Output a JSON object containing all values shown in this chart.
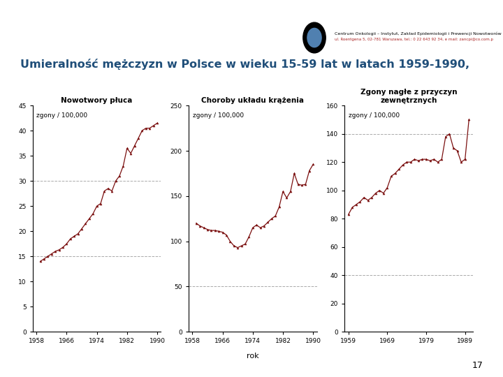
{
  "title": "Umieralność mężczyzn w Polsce w wieku 15-59 lat w latach 1959-1990,",
  "title_color": "#1F4E79",
  "bg_color": "#FFFFFF",
  "header_blue": "#5080B0",
  "header_red": "#8B1A1A",
  "line_color": "#7B1010",
  "grid_color": "#AAAAAA",
  "page_number": "17",
  "plot1": {
    "title": "Nowotwory płuca",
    "ylabel": "zgony / 100,000",
    "ylim": [
      0,
      45
    ],
    "yticks": [
      0,
      5,
      10,
      15,
      20,
      25,
      30,
      35,
      40,
      45
    ],
    "xticks": [
      1958,
      1966,
      1974,
      1982,
      1990
    ],
    "xlim": [
      1957,
      1991
    ],
    "hgrid": [
      15,
      30
    ],
    "years": [
      1959,
      1960,
      1961,
      1962,
      1963,
      1964,
      1965,
      1966,
      1967,
      1968,
      1969,
      1970,
      1971,
      1972,
      1973,
      1974,
      1975,
      1976,
      1977,
      1978,
      1979,
      1980,
      1981,
      1982,
      1983,
      1984,
      1985,
      1986,
      1987,
      1988,
      1989,
      1990
    ],
    "values": [
      14.0,
      14.5,
      15.0,
      15.5,
      16.0,
      16.3,
      16.8,
      17.5,
      18.5,
      19.0,
      19.5,
      20.5,
      21.5,
      22.5,
      23.5,
      25.0,
      25.5,
      28.0,
      28.5,
      28.0,
      30.0,
      31.0,
      33.0,
      36.5,
      35.5,
      37.0,
      38.5,
      40.0,
      40.5,
      40.5,
      41.0,
      41.5
    ]
  },
  "plot2": {
    "title": "Choroby układu krążenia",
    "ylabel": "zgony / 100,000",
    "xlabel": "rok",
    "ylim": [
      0,
      250
    ],
    "yticks": [
      0,
      50,
      100,
      150,
      200,
      250
    ],
    "xticks": [
      1958,
      1966,
      1974,
      1982,
      1990
    ],
    "xlim": [
      1957,
      1991
    ],
    "hgrid": [
      50
    ],
    "years": [
      1959,
      1960,
      1961,
      1962,
      1963,
      1964,
      1965,
      1966,
      1967,
      1968,
      1969,
      1970,
      1971,
      1972,
      1973,
      1974,
      1975,
      1976,
      1977,
      1978,
      1979,
      1980,
      1981,
      1982,
      1983,
      1984,
      1985,
      1986,
      1987,
      1988,
      1989,
      1990
    ],
    "values": [
      120.0,
      117.0,
      115.0,
      113.0,
      112.0,
      112.0,
      111.0,
      110.0,
      107.0,
      100.0,
      95.0,
      93.0,
      95.0,
      97.0,
      105.0,
      115.0,
      118.0,
      115.0,
      117.0,
      121.0,
      125.0,
      128.0,
      138.0,
      155.0,
      148.0,
      155.0,
      175.0,
      163.0,
      162.0,
      163.0,
      178.0,
      185.0
    ]
  },
  "plot3": {
    "title": "Zgony nagłe z przyczyn\nzewnętrznych",
    "ylabel": "zgony / 100,000",
    "ylim": [
      0,
      160
    ],
    "yticks": [
      0,
      20,
      40,
      60,
      80,
      100,
      120,
      140,
      160
    ],
    "xticks": [
      1959,
      1969,
      1979,
      1989
    ],
    "xlim": [
      1958,
      1991
    ],
    "hgrid": [
      40,
      140
    ],
    "years": [
      1959,
      1960,
      1961,
      1962,
      1963,
      1964,
      1965,
      1966,
      1967,
      1968,
      1969,
      1970,
      1971,
      1972,
      1973,
      1974,
      1975,
      1976,
      1977,
      1978,
      1979,
      1980,
      1981,
      1982,
      1983,
      1984,
      1985,
      1986,
      1987,
      1988,
      1989,
      1990
    ],
    "values": [
      83.0,
      88.0,
      90.0,
      92.0,
      95.0,
      93.0,
      95.0,
      98.0,
      100.0,
      98.0,
      102.0,
      110.0,
      112.0,
      115.0,
      118.0,
      120.0,
      120.0,
      122.0,
      121.0,
      122.0,
      122.0,
      121.0,
      122.0,
      120.0,
      122.0,
      138.0,
      140.0,
      130.0,
      128.0,
      120.0,
      122.0,
      150.0
    ]
  }
}
